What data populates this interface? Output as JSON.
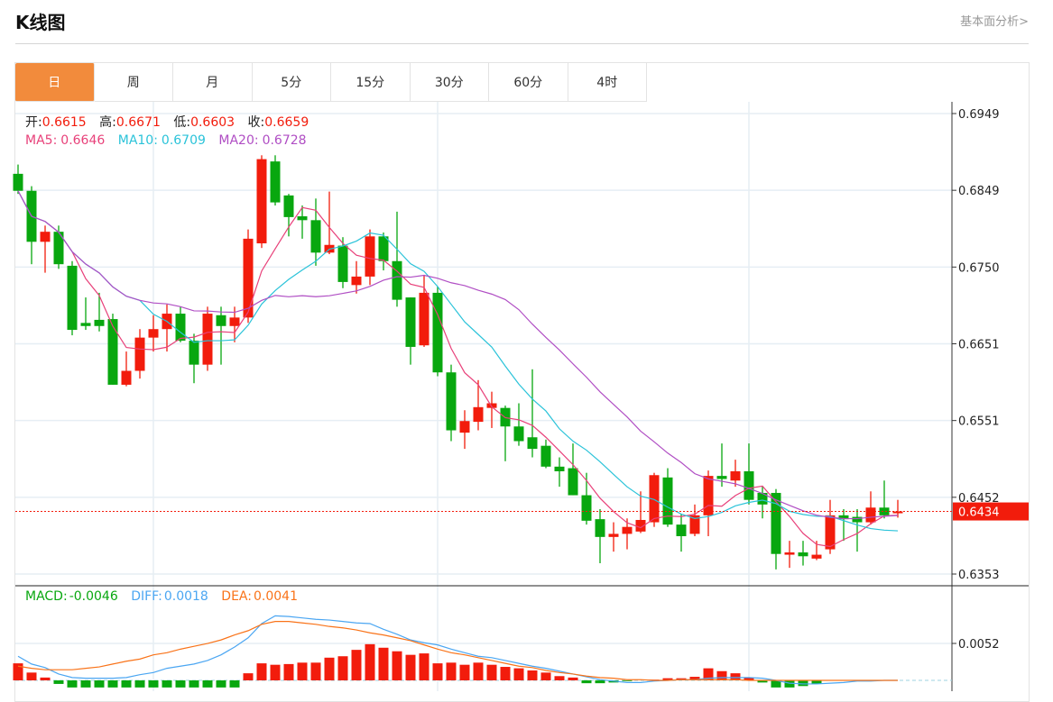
{
  "header": {
    "title": "K线图",
    "link": "基本面分析>"
  },
  "tabs": [
    "日",
    "周",
    "月",
    "5分",
    "15分",
    "30分",
    "60分",
    "4时"
  ],
  "active_tab": 0,
  "ohlc": {
    "open_label": "开:",
    "open": "0.6615",
    "high_label": "高:",
    "high": "0.6671",
    "low_label": "低:",
    "low": "0.6603",
    "close_label": "收:",
    "close": "0.6659"
  },
  "ma": {
    "ma5_label": "MA5:",
    "ma5": "0.6646",
    "ma10_label": "MA10:",
    "ma10": "0.6709",
    "ma20_label": "MA20:",
    "ma20": "0.6728"
  },
  "macd": {
    "macd_label": "MACD:",
    "macd": "-0.0046",
    "diff_label": "DIFF:",
    "diff": "0.0018",
    "dea_label": "DEA:",
    "dea": "0.0041"
  },
  "price_axis": [
    "0.6949",
    "0.6849",
    "0.6750",
    "0.6651",
    "0.6551",
    "0.6452",
    "0.6353"
  ],
  "macd_axis": [
    "0.0052"
  ],
  "current_price": "0.6434",
  "colors": {
    "up": "#f21c0c",
    "down": "#08a70f",
    "ma5": "#e8417a",
    "ma10": "#2bc3d9",
    "ma20": "#b04ec4",
    "diff": "#4ba6f2",
    "dea": "#f97319",
    "accent": "#f28b3c"
  },
  "chart_data": {
    "type": "candlestick",
    "ylim": [
      0.6353,
      0.6949
    ],
    "candles": [
      [
        0.6871,
        0.6883,
        0.6845,
        0.6849
      ],
      [
        0.6849,
        0.6855,
        0.6754,
        0.6783
      ],
      [
        0.6783,
        0.6804,
        0.6743,
        0.6796
      ],
      [
        0.6796,
        0.6804,
        0.6748,
        0.6754
      ],
      [
        0.6752,
        0.6758,
        0.6662,
        0.6669
      ],
      [
        0.6678,
        0.6711,
        0.6669,
        0.6674
      ],
      [
        0.6682,
        0.6717,
        0.6667,
        0.6674
      ],
      [
        0.6683,
        0.669,
        0.6598,
        0.6598
      ],
      [
        0.6598,
        0.6641,
        0.6596,
        0.6616
      ],
      [
        0.6616,
        0.667,
        0.6606,
        0.6659
      ],
      [
        0.6659,
        0.6688,
        0.6641,
        0.667
      ],
      [
        0.667,
        0.6702,
        0.6641,
        0.669
      ],
      [
        0.669,
        0.6699,
        0.6653,
        0.6655
      ],
      [
        0.6655,
        0.6664,
        0.66,
        0.6624
      ],
      [
        0.6624,
        0.6699,
        0.6616,
        0.669
      ],
      [
        0.6688,
        0.6699,
        0.6624,
        0.6674
      ],
      [
        0.6674,
        0.6699,
        0.6653,
        0.6685
      ],
      [
        0.6685,
        0.6799,
        0.6678,
        0.6787
      ],
      [
        0.6781,
        0.6895,
        0.6775,
        0.689
      ],
      [
        0.6887,
        0.6895,
        0.683,
        0.6834
      ],
      [
        0.6843,
        0.6845,
        0.679,
        0.6815
      ],
      [
        0.6816,
        0.683,
        0.6787,
        0.6811
      ],
      [
        0.6811,
        0.6839,
        0.6752,
        0.6769
      ],
      [
        0.6769,
        0.6848,
        0.6767,
        0.6779
      ],
      [
        0.6778,
        0.6789,
        0.6723,
        0.6731
      ],
      [
        0.6727,
        0.6758,
        0.6716,
        0.6738
      ],
      [
        0.6738,
        0.6799,
        0.6727,
        0.679
      ],
      [
        0.679,
        0.6795,
        0.6746,
        0.6758
      ],
      [
        0.6758,
        0.6822,
        0.6699,
        0.6708
      ],
      [
        0.6711,
        0.6711,
        0.6624,
        0.6647
      ],
      [
        0.6649,
        0.674,
        0.6647,
        0.6717
      ],
      [
        0.6717,
        0.6725,
        0.6609,
        0.6614
      ],
      [
        0.6614,
        0.6624,
        0.6525,
        0.6539
      ],
      [
        0.6536,
        0.6565,
        0.6515,
        0.6551
      ],
      [
        0.655,
        0.6604,
        0.6539,
        0.6569
      ],
      [
        0.6568,
        0.6589,
        0.6542,
        0.6574
      ],
      [
        0.6568,
        0.6571,
        0.6499,
        0.6544
      ],
      [
        0.6544,
        0.6574,
        0.6519,
        0.6525
      ],
      [
        0.653,
        0.6618,
        0.6504,
        0.6515
      ],
      [
        0.6519,
        0.6527,
        0.649,
        0.6492
      ],
      [
        0.6492,
        0.6504,
        0.6466,
        0.6486
      ],
      [
        0.649,
        0.6522,
        0.6455,
        0.6455
      ],
      [
        0.6455,
        0.6484,
        0.6417,
        0.6422
      ],
      [
        0.6424,
        0.6437,
        0.6367,
        0.6401
      ],
      [
        0.6401,
        0.642,
        0.6382,
        0.6405
      ],
      [
        0.6405,
        0.6425,
        0.6385,
        0.6414
      ],
      [
        0.6408,
        0.646,
        0.6406,
        0.6423
      ],
      [
        0.642,
        0.6484,
        0.6414,
        0.6481
      ],
      [
        0.6478,
        0.649,
        0.6414,
        0.6417
      ],
      [
        0.6417,
        0.6431,
        0.6382,
        0.6402
      ],
      [
        0.6405,
        0.6443,
        0.6402,
        0.6429
      ],
      [
        0.6429,
        0.6487,
        0.6402,
        0.648
      ],
      [
        0.648,
        0.6522,
        0.6466,
        0.6476
      ],
      [
        0.6474,
        0.6501,
        0.6466,
        0.6486
      ],
      [
        0.6486,
        0.6522,
        0.6443,
        0.6449
      ],
      [
        0.6458,
        0.6466,
        0.6425,
        0.6443
      ],
      [
        0.6458,
        0.6463,
        0.6359,
        0.6379
      ],
      [
        0.6378,
        0.6396,
        0.6361,
        0.6381
      ],
      [
        0.6381,
        0.6396,
        0.6364,
        0.6376
      ],
      [
        0.6373,
        0.6396,
        0.6371,
        0.6378
      ],
      [
        0.6385,
        0.6449,
        0.6379,
        0.6429
      ],
      [
        0.6429,
        0.6437,
        0.6396,
        0.6424
      ],
      [
        0.6427,
        0.6437,
        0.6382,
        0.642
      ],
      [
        0.642,
        0.646,
        0.6417,
        0.6439
      ],
      [
        0.6439,
        0.6474,
        0.6425,
        0.6429
      ],
      [
        0.6433,
        0.6449,
        0.6426,
        0.6434
      ]
    ],
    "macd_hist": [
      0.0024,
      0.0011,
      0.0004,
      -0.0005,
      -0.001,
      -0.001,
      -0.001,
      -0.001,
      -0.001,
      -0.001,
      -0.001,
      -0.001,
      -0.001,
      -0.001,
      -0.001,
      -0.001,
      -0.001,
      0.001,
      0.0024,
      0.0022,
      0.0023,
      0.0025,
      0.0025,
      0.0032,
      0.0034,
      0.0043,
      0.0051,
      0.0046,
      0.0041,
      0.0036,
      0.0038,
      0.0024,
      0.0025,
      0.0022,
      0.0025,
      0.0022,
      0.0019,
      0.0017,
      0.0014,
      0.0011,
      0.0006,
      0.0004,
      -0.0004,
      -0.0004,
      -0.0003,
      -0.0001,
      0,
      0.0001,
      0.0003,
      0.0003,
      0.0005,
      0.0017,
      0.0013,
      0.001,
      0.0004,
      -0.0003,
      -0.001,
      -0.001,
      -0.0008,
      -0.0005,
      0,
      0,
      0,
      0,
      0,
      0
    ],
    "diff": [
      0.0034,
      0.0023,
      0.0018,
      0.0009,
      0.0004,
      0.0003,
      0.0003,
      0.0003,
      0.0004,
      0.0008,
      0.0011,
      0.0017,
      0.002,
      0.0023,
      0.0028,
      0.0036,
      0.0047,
      0.006,
      0.008,
      0.0091,
      0.009,
      0.0088,
      0.0086,
      0.0085,
      0.0083,
      0.0081,
      0.008,
      0.0072,
      0.0065,
      0.0057,
      0.0053,
      0.005,
      0.0044,
      0.0039,
      0.0034,
      0.0032,
      0.0028,
      0.0024,
      0.002,
      0.0017,
      0.0013,
      0.0009,
      0.0005,
      0.0001,
      -0.0001,
      -0.0003,
      -0.0003,
      -0.0001,
      0,
      0.0001,
      0.0001,
      0.0003,
      0.0004,
      0.0004,
      0.0004,
      0.0003,
      0,
      -0.0004,
      -0.0005,
      -0.0005,
      -0.0004,
      -0.0003,
      -0.0001,
      -0.0001,
      0,
      0
    ],
    "dea": [
      0.002,
      0.0017,
      0.0015,
      0.0015,
      0.0015,
      0.0017,
      0.0019,
      0.0023,
      0.0027,
      0.003,
      0.0036,
      0.0039,
      0.0044,
      0.0048,
      0.0052,
      0.0057,
      0.0064,
      0.007,
      0.0079,
      0.0083,
      0.0083,
      0.0081,
      0.0079,
      0.0076,
      0.0074,
      0.0071,
      0.0067,
      0.0064,
      0.006,
      0.0056,
      0.005,
      0.0044,
      0.0039,
      0.0036,
      0.0032,
      0.0028,
      0.0024,
      0.002,
      0.0018,
      0.0014,
      0.0011,
      0.0009,
      0.0006,
      0.0004,
      0.0003,
      0.0001,
      0.0001,
      0,
      0,
      0.0001,
      0.0001,
      0.0001,
      0.0001,
      0.0001,
      0,
      0,
      0,
      0,
      0,
      0,
      0,
      0,
      0,
      0,
      0,
      0
    ]
  }
}
